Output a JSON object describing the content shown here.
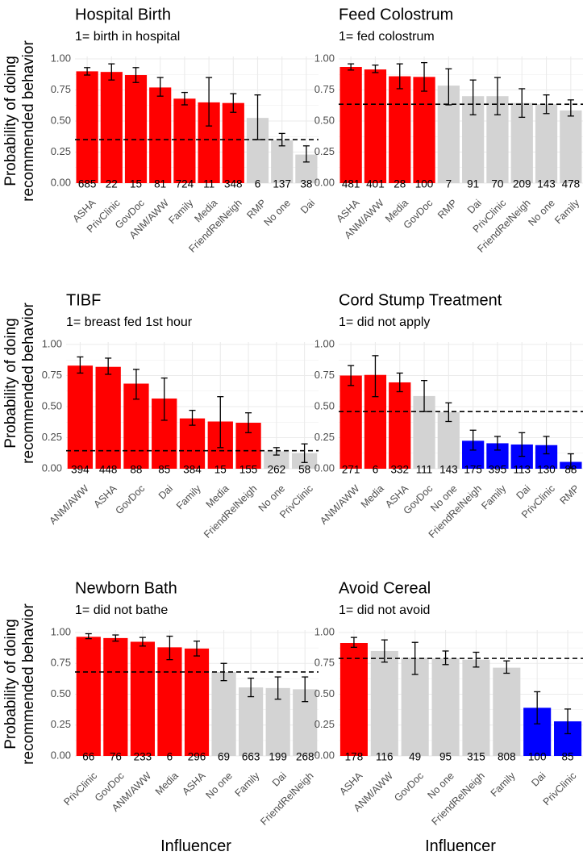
{
  "y_axis_label": [
    "Probability of doing",
    "recommended behavior"
  ],
  "x_axis_label": "Influencer",
  "colors": {
    "above": "#ff0000",
    "neutral": "#d3d3d3",
    "below": "#0000ff",
    "grid": "#ebebeb",
    "text": "#4d4d4d"
  },
  "chart_data": [
    {
      "type": "bar",
      "title": "Hospital Birth",
      "subtitle": "1= birth in hospital",
      "xlabel": "Influencer",
      "ylabel": "Probability of doing recommended behavior",
      "ylim": [
        0,
        1
      ],
      "yticks": [
        "0.00",
        "0.25",
        "0.50",
        "0.75",
        "1.00"
      ],
      "baseline": 0.35,
      "categories": [
        "ASHA",
        "PrivClinic",
        "GovDoc",
        "ANM/AWW",
        "Family",
        "Media",
        "FriendRelNeigh",
        "RMP",
        "No one",
        "Dai"
      ],
      "values": [
        0.9,
        0.895,
        0.87,
        0.77,
        0.68,
        0.65,
        0.645,
        0.525,
        0.345,
        0.23
      ],
      "err_low": [
        0.87,
        0.83,
        0.81,
        0.7,
        0.63,
        0.46,
        0.57,
        0.35,
        0.3,
        0.17
      ],
      "err_high": [
        0.93,
        0.96,
        0.93,
        0.85,
        0.73,
        0.85,
        0.72,
        0.71,
        0.4,
        0.3
      ],
      "n": [
        "685",
        "22",
        "15",
        "81",
        "724",
        "11",
        "348",
        "6",
        "137",
        "38"
      ],
      "group": [
        "above",
        "above",
        "above",
        "above",
        "above",
        "above",
        "above",
        "neutral",
        "neutral",
        "neutral"
      ]
    },
    {
      "type": "bar",
      "title": "Feed Colostrum",
      "subtitle": "1= fed colostrum",
      "xlabel": "Influencer",
      "ylabel": "Probability of doing recommended behavior",
      "ylim": [
        0,
        1
      ],
      "yticks": [
        "0.00",
        "0.25",
        "0.50",
        "0.75",
        "1.00"
      ],
      "baseline": 0.635,
      "categories": [
        "ASHA",
        "ANM/AWW",
        "Media",
        "GovDoc",
        "RMP",
        "Dai",
        "PrivClinic",
        "FriendRelNeigh",
        "No one",
        "Family"
      ],
      "values": [
        0.935,
        0.915,
        0.86,
        0.855,
        0.785,
        0.7,
        0.7,
        0.645,
        0.635,
        0.585
      ],
      "err_low": [
        0.91,
        0.89,
        0.76,
        0.74,
        0.63,
        0.55,
        0.55,
        0.53,
        0.56,
        0.54
      ],
      "err_high": [
        0.96,
        0.95,
        0.96,
        0.97,
        0.92,
        0.83,
        0.85,
        0.76,
        0.71,
        0.67
      ],
      "n": [
        "481",
        "401",
        "28",
        "100",
        "7",
        "91",
        "70",
        "209",
        "143",
        "478"
      ],
      "group": [
        "above",
        "above",
        "above",
        "above",
        "neutral",
        "neutral",
        "neutral",
        "neutral",
        "neutral",
        "neutral"
      ]
    },
    {
      "type": "bar",
      "title": "TIBF",
      "subtitle": "1= breast fed 1st hour",
      "xlabel": "Influencer",
      "ylabel": "Probability of doing recommended behavior",
      "ylim": [
        0,
        1
      ],
      "yticks": [
        "0.00",
        "0.25",
        "0.50",
        "0.75",
        "1.00"
      ],
      "baseline": 0.145,
      "categories": [
        "ANM/AWW",
        "ASHA",
        "GovDoc",
        "Dai",
        "Family",
        "Media",
        "FriendRelNeigh",
        "No one",
        "PrivClinic"
      ],
      "values": [
        0.83,
        0.82,
        0.685,
        0.565,
        0.405,
        0.38,
        0.37,
        0.14,
        0.125
      ],
      "err_low": [
        0.77,
        0.76,
        0.56,
        0.39,
        0.35,
        0.17,
        0.29,
        0.11,
        0.05
      ],
      "err_high": [
        0.9,
        0.89,
        0.8,
        0.73,
        0.47,
        0.58,
        0.45,
        0.17,
        0.2
      ],
      "n": [
        "394",
        "448",
        "88",
        "85",
        "384",
        "15",
        "155",
        "262",
        "58"
      ],
      "group": [
        "above",
        "above",
        "above",
        "above",
        "above",
        "above",
        "above",
        "neutral",
        "neutral"
      ]
    },
    {
      "type": "bar",
      "title": "Cord Stump Treatment",
      "subtitle": "1= did not apply",
      "xlabel": "Influencer",
      "ylabel": "Probability of doing recommended behavior",
      "ylim": [
        0,
        1
      ],
      "yticks": [
        "0.00",
        "0.25",
        "0.50",
        "0.75",
        "1.00"
      ],
      "baseline": 0.46,
      "categories": [
        "ANM/AWW",
        "Media",
        "ASHA",
        "GovDoc",
        "No one",
        "FriendRelNeigh",
        "Family",
        "Dai",
        "PrivClinic",
        "RMP"
      ],
      "values": [
        0.75,
        0.755,
        0.695,
        0.585,
        0.455,
        0.225,
        0.205,
        0.195,
        0.19,
        0.055
      ],
      "err_low": [
        0.67,
        0.58,
        0.62,
        0.46,
        0.38,
        0.15,
        0.15,
        0.1,
        0.12,
        0.0
      ],
      "err_high": [
        0.83,
        0.91,
        0.77,
        0.71,
        0.53,
        0.31,
        0.26,
        0.29,
        0.26,
        0.12
      ],
      "n": [
        "271",
        "6",
        "332",
        "111",
        "143",
        "175",
        "395",
        "113",
        "130",
        "88"
      ],
      "group": [
        "above",
        "above",
        "above",
        "neutral",
        "neutral",
        "below",
        "below",
        "below",
        "below",
        "below"
      ]
    },
    {
      "type": "bar",
      "title": "Newborn Bath",
      "subtitle": "1= did not bathe",
      "xlabel": "Influencer",
      "ylabel": "Probability of doing recommended behavior",
      "ylim": [
        0,
        1
      ],
      "yticks": [
        "0.00",
        "0.25",
        "0.50",
        "0.75",
        "1.00"
      ],
      "baseline": 0.68,
      "categories": [
        "PrivClinic",
        "GovDoc",
        "ANM/AWW",
        "Media",
        "ASHA",
        "No one",
        "Family",
        "Dai",
        "FriendRelNeigh"
      ],
      "values": [
        0.965,
        0.955,
        0.925,
        0.88,
        0.87,
        0.68,
        0.555,
        0.55,
        0.54
      ],
      "err_low": [
        0.95,
        0.93,
        0.89,
        0.78,
        0.81,
        0.61,
        0.48,
        0.46,
        0.44
      ],
      "err_high": [
        0.99,
        0.98,
        0.96,
        0.97,
        0.93,
        0.75,
        0.63,
        0.64,
        0.64
      ],
      "n": [
        "66",
        "76",
        "233",
        "6",
        "296",
        "69",
        "663",
        "199",
        "268"
      ],
      "group": [
        "above",
        "above",
        "above",
        "above",
        "above",
        "neutral",
        "neutral",
        "neutral",
        "neutral"
      ]
    },
    {
      "type": "bar",
      "title": "Avoid Cereal",
      "subtitle": "1= did not avoid",
      "xlabel": "Influencer",
      "ylabel": "Probability of doing recommended behavior",
      "ylim": [
        0,
        1
      ],
      "yticks": [
        "0.00",
        "0.25",
        "0.50",
        "0.75",
        "1.00"
      ],
      "baseline": 0.79,
      "categories": [
        "ASHA",
        "ANM/AWW",
        "GovDoc",
        "No one",
        "FriendRelNeigh",
        "Family",
        "Dai",
        "PrivClinic"
      ],
      "values": [
        0.915,
        0.85,
        0.795,
        0.79,
        0.78,
        0.715,
        0.39,
        0.28
      ],
      "err_low": [
        0.88,
        0.76,
        0.66,
        0.74,
        0.72,
        0.67,
        0.26,
        0.18
      ],
      "err_high": [
        0.96,
        0.94,
        0.92,
        0.85,
        0.84,
        0.77,
        0.52,
        0.38
      ],
      "n": [
        "178",
        "116",
        "49",
        "95",
        "315",
        "808",
        "100",
        "85"
      ],
      "group": [
        "above",
        "neutral",
        "neutral",
        "neutral",
        "neutral",
        "neutral",
        "below",
        "below"
      ]
    }
  ]
}
